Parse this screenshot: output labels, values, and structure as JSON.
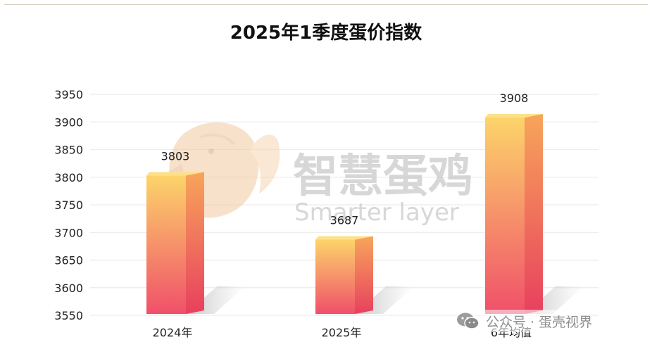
{
  "chart_data": {
    "type": "bar",
    "title": "2025年1季度蛋价指数",
    "categories": [
      "2024年",
      "2025年",
      "6年均值"
    ],
    "values": [
      3803,
      3687,
      3908
    ],
    "ylim": [
      3550,
      3950
    ],
    "yticks": [
      3950,
      3900,
      3850,
      3800,
      3750,
      3700,
      3650,
      3600,
      3550
    ],
    "xlabel": "",
    "ylabel": "",
    "grid": true,
    "bar_style": "3d-gradient",
    "colors": {
      "bar_top": "#fcd46a",
      "bar_bottom": "#f0506a",
      "grid": "#ececec"
    }
  },
  "watermark": {
    "brand_cn": "智慧蛋鸡",
    "brand_en": "Smarter layer",
    "icon": "chick-logo-icon"
  },
  "footer": {
    "icon": "wechat-icon",
    "text": "公众号 · 蛋壳视界"
  }
}
